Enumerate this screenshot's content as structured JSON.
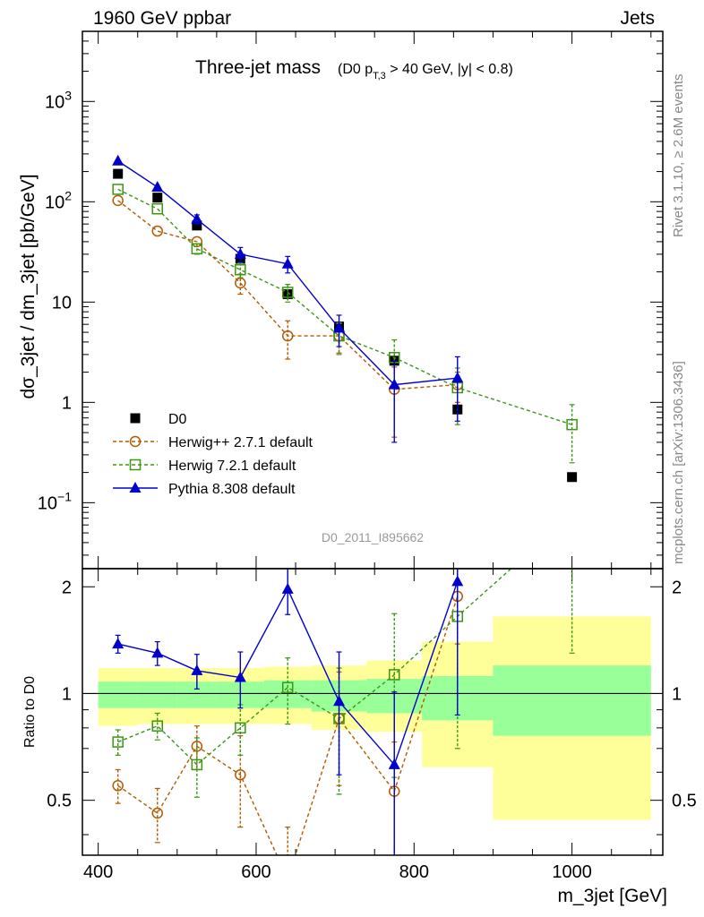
{
  "header": {
    "left": "1960 GeV ppbar",
    "right": "Jets",
    "side_top": "Rivet 3.1.10, ≥ 2.6M events",
    "side_bottom": "mcplots.cern.ch [arXiv:1306.3436]"
  },
  "chart_data": [
    {
      "type": "line",
      "title": "Three-jet mass",
      "subtitle": "(D0 p_T,3 > 40 GeV, |y| < 0.8)",
      "ylabel": "dσ_3jet / dm_3jet [pb/GeV]",
      "xlabel": "m_3jet [GeV]",
      "xlim": [
        380,
        1115
      ],
      "ylim": [
        0.022,
        5000
      ],
      "yscale": "log",
      "x_ticks": [
        "400",
        "600",
        "800",
        "1000"
      ],
      "y_ticks": [
        "10^-1",
        "1",
        "10",
        "10^2",
        "10^3"
      ],
      "watermark": "D0_2011_I895662",
      "legend_position": "bottom-left",
      "series": [
        {
          "name": "D0",
          "color": "#000000",
          "marker": "filled-square",
          "x": [
            425,
            475,
            525,
            580,
            640,
            705,
            775,
            855,
            1000
          ],
          "y": [
            190,
            110,
            58,
            27,
            12,
            5.7,
            2.6,
            0.85,
            0.18
          ]
        },
        {
          "name": "Herwig++ 2.7.1 default",
          "color": "#b35900",
          "marker": "open-circle",
          "linestyle": "dashed",
          "x": [
            425,
            475,
            525,
            580,
            640,
            705,
            775,
            855
          ],
          "y": [
            103,
            51,
            40,
            15.5,
            4.6,
            4.6,
            1.35,
            1.5
          ],
          "err": [
            0.0,
            0.0,
            0.0,
            3.5,
            1.9,
            1.5,
            0.9,
            0.5
          ]
        },
        {
          "name": "Herwig 7.2.1 default",
          "color": "#3c9614",
          "marker": "open-square",
          "linestyle": "dashed",
          "x": [
            425,
            475,
            525,
            580,
            640,
            705,
            775,
            855,
            1000
          ],
          "y": [
            133,
            85,
            34,
            21,
            12.5,
            4.6,
            2.8,
            1.4,
            0.6
          ],
          "err": [
            0.0,
            0.0,
            4,
            3.5,
            2.5,
            1.6,
            1.4,
            0.8,
            0.35
          ]
        },
        {
          "name": "Pythia 8.308 default",
          "color": "#0000cc",
          "marker": "filled-triangle",
          "linestyle": "solid",
          "x": [
            425,
            475,
            525,
            580,
            640,
            705,
            775,
            855
          ],
          "y": [
            255,
            140,
            67,
            30,
            24,
            5.5,
            1.5,
            1.75
          ],
          "err": [
            0.0,
            0.0,
            7,
            5,
            4.5,
            1.9,
            1.1,
            1.1
          ]
        }
      ]
    },
    {
      "type": "line",
      "ylabel": "Ratio to D0",
      "xlabel": "m_3jet [GeV]",
      "xlim": [
        380,
        1115
      ],
      "ylim": [
        0.35,
        2.25
      ],
      "y_ticks": [
        "0.5",
        "1",
        "2"
      ],
      "x_ticks": [
        "400",
        "600",
        "800",
        "1000"
      ],
      "bands": [
        {
          "x0": 400,
          "x1": 450,
          "green": [
            0.91,
            1.08
          ],
          "yellow": [
            0.81,
            1.18
          ]
        },
        {
          "x0": 450,
          "x1": 500,
          "green": [
            0.91,
            1.08
          ],
          "yellow": [
            0.82,
            1.18
          ]
        },
        {
          "x0": 500,
          "x1": 550,
          "green": [
            0.91,
            1.08
          ],
          "yellow": [
            0.82,
            1.18
          ]
        },
        {
          "x0": 550,
          "x1": 610,
          "green": [
            0.91,
            1.08
          ],
          "yellow": [
            0.82,
            1.18
          ]
        },
        {
          "x0": 610,
          "x1": 670,
          "green": [
            0.91,
            1.09
          ],
          "yellow": [
            0.82,
            1.19
          ]
        },
        {
          "x0": 670,
          "x1": 740,
          "green": [
            0.89,
            1.09
          ],
          "yellow": [
            0.79,
            1.2
          ]
        },
        {
          "x0": 740,
          "x1": 810,
          "green": [
            0.88,
            1.1
          ],
          "yellow": [
            0.78,
            1.24
          ]
        },
        {
          "x0": 810,
          "x1": 900,
          "green": [
            0.84,
            1.12
          ],
          "yellow": [
            0.62,
            1.4
          ]
        },
        {
          "x0": 900,
          "x1": 1100,
          "green": [
            0.76,
            1.2
          ],
          "yellow": [
            0.44,
            1.65
          ]
        }
      ],
      "series": [
        {
          "name": "Herwig++ 2.7.1 default",
          "color": "#b35900",
          "marker": "open-circle",
          "linestyle": "dashed",
          "x": [
            425,
            475,
            525,
            580,
            640,
            705,
            775,
            855
          ],
          "y": [
            0.55,
            0.46,
            0.71,
            0.59,
            0.3,
            0.85,
            0.53,
            1.88
          ],
          "err": [
            0.06,
            0.08,
            0.1,
            0.17,
            0.12,
            0.3,
            0.2,
            0.5
          ]
        },
        {
          "name": "Herwig 7.2.1 default",
          "color": "#3c9614",
          "marker": "open-square",
          "linestyle": "dashed",
          "x": [
            425,
            475,
            525,
            580,
            640,
            705,
            775,
            855,
            1000
          ],
          "y": [
            0.73,
            0.81,
            0.63,
            0.8,
            1.04,
            0.85,
            1.13,
            1.65,
            3.2
          ],
          "err": [
            0.06,
            0.07,
            0.12,
            0.13,
            0.22,
            0.33,
            0.55,
            0.95,
            1.9
          ]
        },
        {
          "name": "Pythia 8.308 default",
          "color": "#0000cc",
          "marker": "filled-triangle",
          "linestyle": "solid",
          "x": [
            425,
            475,
            525,
            580,
            640,
            705,
            775,
            855
          ],
          "y": [
            1.38,
            1.3,
            1.16,
            1.11,
            1.97,
            0.95,
            0.63,
            2.07
          ],
          "err": [
            0.08,
            0.1,
            0.13,
            0.2,
            0.3,
            0.36,
            0.38,
            1.2
          ]
        }
      ]
    }
  ]
}
